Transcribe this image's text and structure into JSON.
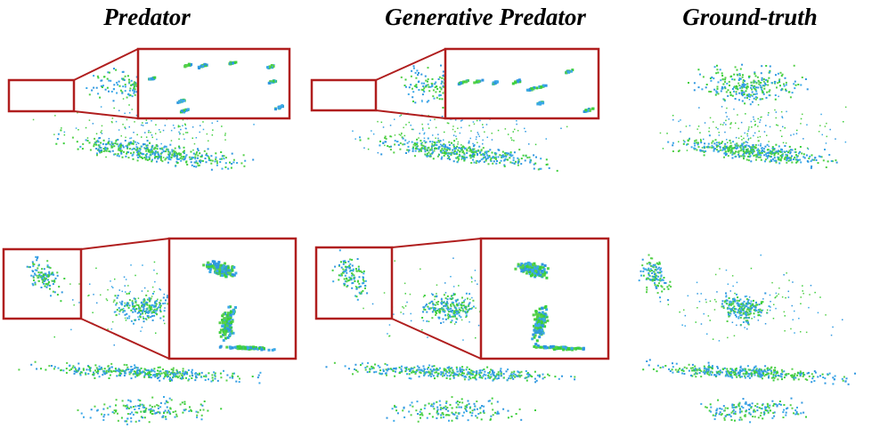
{
  "columns": [
    {
      "title": "Predator"
    },
    {
      "title": "Generative Predator"
    },
    {
      "title": "Ground-truth"
    }
  ]
}
